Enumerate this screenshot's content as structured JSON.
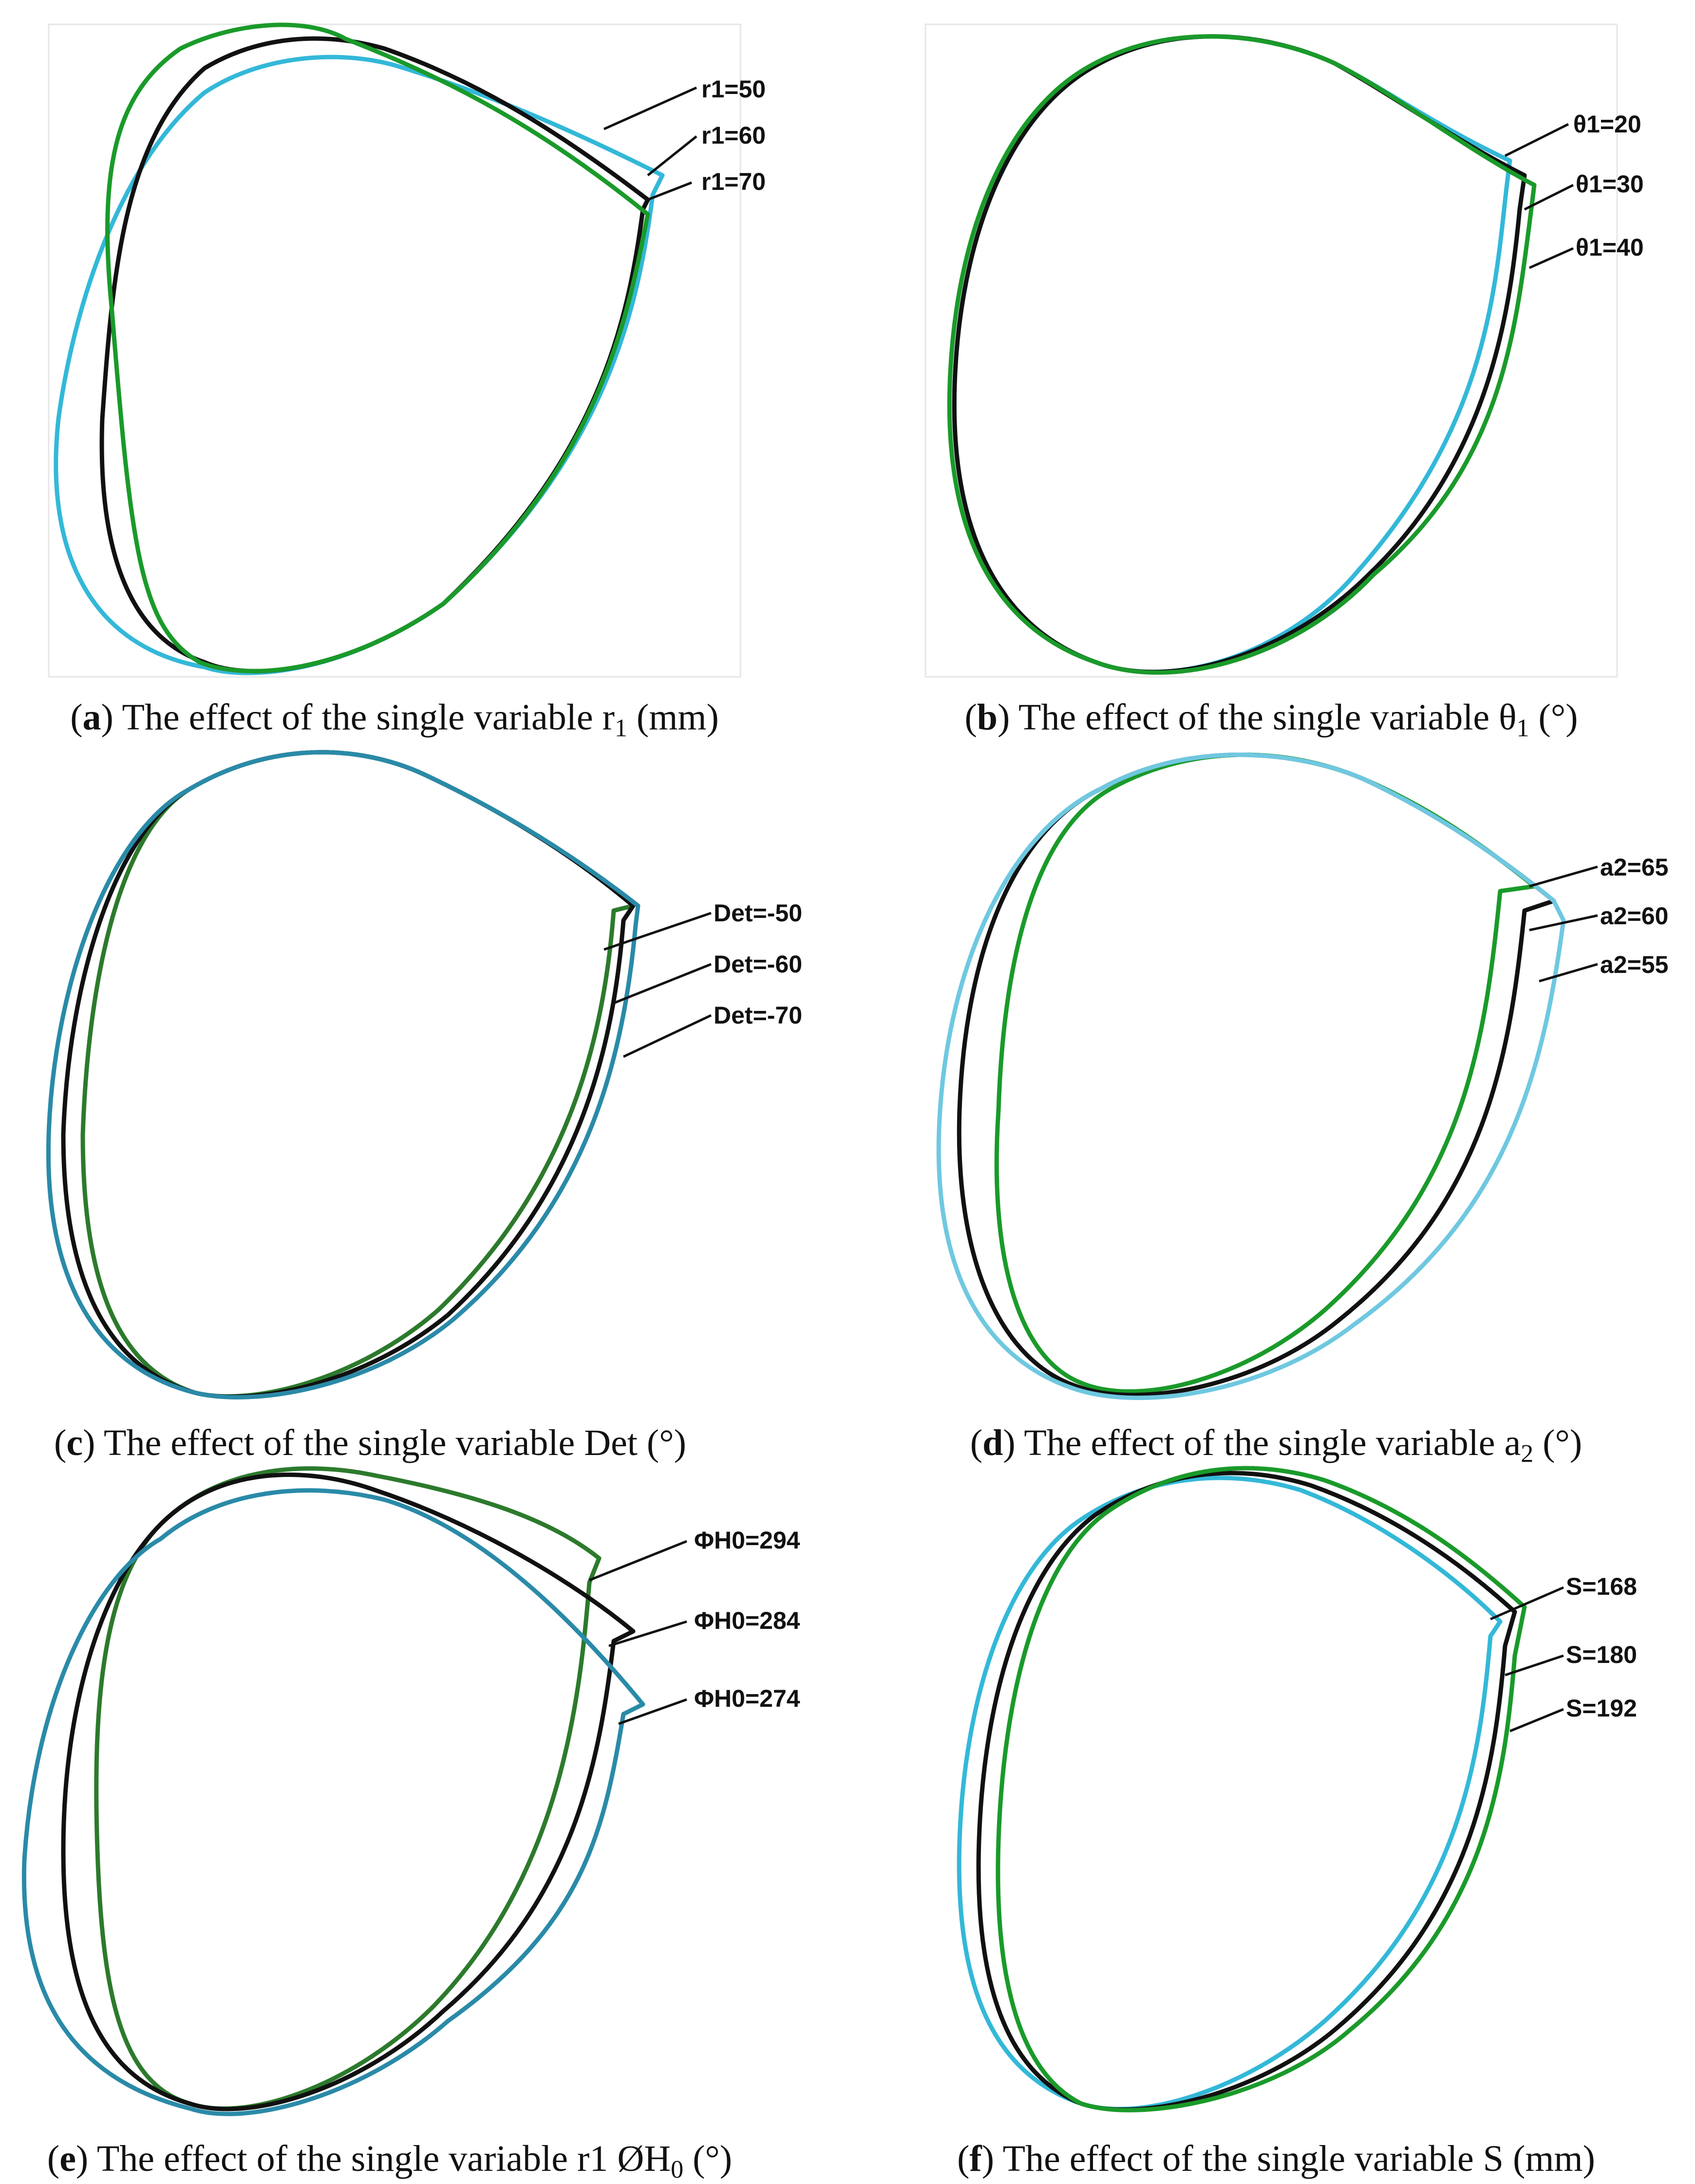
{
  "colors": {
    "cyan": "#33b8d8",
    "black": "#111111",
    "green": "#1a9a2a",
    "darkgreen": "#2c7a2c",
    "teal": "#2a8aa8"
  },
  "panels": [
    {
      "letter": "a",
      "caption_pre": "The effect of the single variable ",
      "symbol": "r",
      "sub": "1",
      "unit": " (mm)",
      "labels": [
        "r1=50",
        "r1=60",
        "r1=70"
      ]
    },
    {
      "letter": "b",
      "caption_pre": "The effect of the single variable ",
      "symbol": "θ",
      "sub": "1",
      "unit": " (°)",
      "labels": [
        "θ1=20",
        "θ1=30",
        "θ1=40"
      ]
    },
    {
      "letter": "c",
      "caption_pre": "The effect of the single variable ",
      "symbol": "Det",
      "sub": "",
      "unit": " (°)",
      "labels": [
        "Det=-50",
        "Det=-60",
        "Det=-70"
      ]
    },
    {
      "letter": "d",
      "caption_pre": "The effect of the single variable ",
      "symbol": "a",
      "sub": "2",
      "unit": " (°)",
      "labels": [
        "a2=65",
        "a2=60",
        "a2=55"
      ]
    },
    {
      "letter": "e",
      "caption_pre": "The effect of the single variable r1 ",
      "symbol": "ØH",
      "sub": "0",
      "unit": " (°)",
      "labels": [
        "ΦH0=294",
        "ΦH0=284",
        "ΦH0=274"
      ]
    },
    {
      "letter": "f",
      "caption_pre": "The effect of the single variable S",
      "symbol": "",
      "sub": "",
      "unit": " (mm)",
      "labels": [
        "S=168",
        "S=180",
        "S=192"
      ]
    }
  ]
}
